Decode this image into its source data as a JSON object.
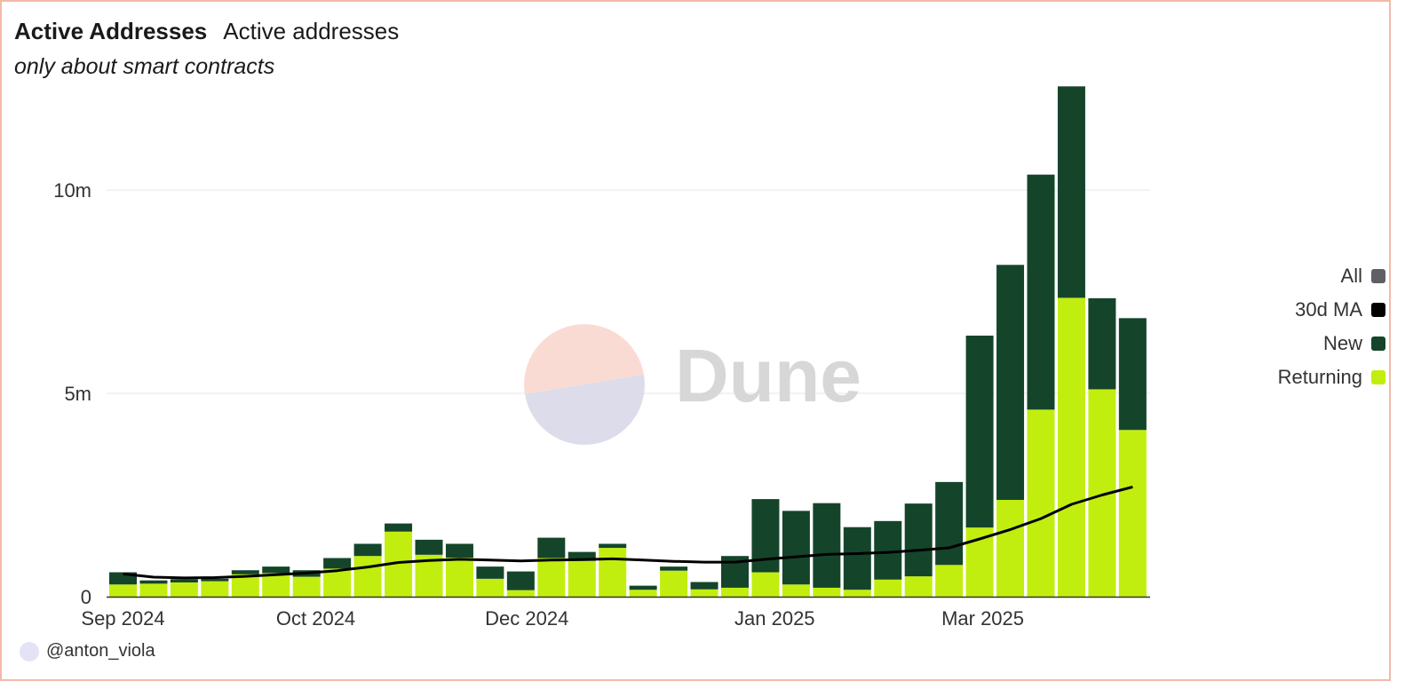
{
  "header": {
    "title": "Active Addresses",
    "subtitle": "Active addresses",
    "description": "only about smart contracts"
  },
  "watermark": {
    "text": "Dune"
  },
  "author": {
    "handle": "@anton_viola"
  },
  "legend": {
    "items": [
      {
        "label": "All",
        "color": "#5f5f66"
      },
      {
        "label": "30d MA",
        "color": "#000000"
      },
      {
        "label": "New",
        "color": "#14452a"
      },
      {
        "label": "Returning",
        "color": "#c2ee0f"
      }
    ]
  },
  "chart_data": {
    "type": "bar",
    "stacked": true,
    "title": "Active Addresses",
    "subtitle": "only about smart contracts",
    "x_tick_labels": [
      "Sep 2024",
      "Oct 2024",
      "Dec 2024",
      "Jan 2025",
      "Mar 2025"
    ],
    "x_tick_positions": [
      0,
      6.3,
      13.2,
      21.3,
      28.1
    ],
    "y_ticks": [
      0,
      5000000,
      10000000
    ],
    "y_tick_labels": [
      "0",
      "5m",
      "10m"
    ],
    "ylim": [
      0,
      12600000
    ],
    "grid": true,
    "legend_position": "right",
    "series": [
      {
        "name": "Returning",
        "color": "#c2ee0f",
        "values": [
          300000,
          320000,
          350000,
          380000,
          550000,
          580000,
          490000,
          690000,
          1000000,
          1600000,
          1030000,
          960000,
          440000,
          160000,
          950000,
          880000,
          1200000,
          170000,
          640000,
          180000,
          220000,
          600000,
          300000,
          220000,
          170000,
          420000,
          500000,
          780000,
          1700000,
          2380000,
          4600000,
          7350000,
          5100000,
          4100000
        ]
      },
      {
        "name": "New",
        "color": "#14452a",
        "values": [
          300000,
          80000,
          80000,
          60000,
          100000,
          160000,
          160000,
          260000,
          300000,
          200000,
          370000,
          340000,
          300000,
          460000,
          500000,
          220000,
          100000,
          100000,
          100000,
          180000,
          780000,
          1800000,
          1810000,
          2080000,
          1540000,
          1440000,
          1790000,
          2040000,
          4720000,
          5780000,
          5780000,
          5200000,
          2240000,
          2750000
        ]
      },
      {
        "name": "30d MA",
        "type": "line",
        "color": "#000000",
        "values": [
          560000,
          480000,
          460000,
          470000,
          500000,
          540000,
          580000,
          640000,
          730000,
          840000,
          890000,
          920000,
          900000,
          880000,
          900000,
          910000,
          930000,
          900000,
          870000,
          850000,
          850000,
          920000,
          980000,
          1040000,
          1060000,
          1090000,
          1140000,
          1200000,
          1420000,
          1650000,
          1920000,
          2270000,
          2500000,
          2700000
        ]
      }
    ]
  }
}
